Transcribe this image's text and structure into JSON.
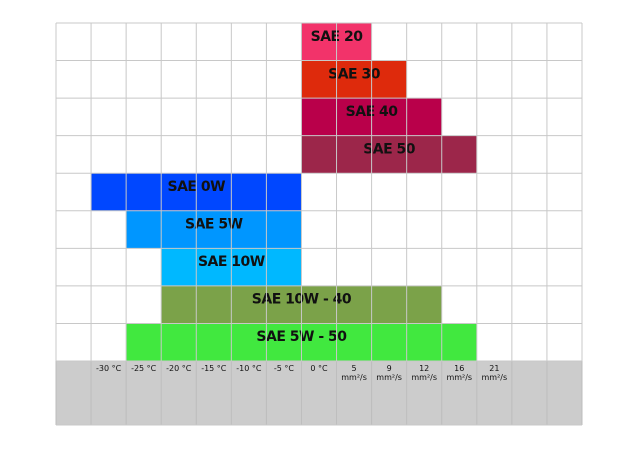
{
  "chart_data": {
    "type": "range-bar",
    "categories": [
      null,
      [
        "-30 °C"
      ],
      [
        "-25 °C"
      ],
      [
        "-20 °C"
      ],
      [
        "-15 °C"
      ],
      [
        "-10 °C"
      ],
      [
        "-5 °C"
      ],
      [
        "0 °C"
      ],
      [
        "5",
        "mm²/s"
      ],
      [
        "9",
        "mm²/s"
      ],
      [
        "12",
        "mm²/s"
      ],
      [
        "16",
        "mm²/s"
      ],
      [
        "21",
        "mm²/s"
      ],
      null,
      null
    ],
    "series": [
      {
        "name": "SAE 20",
        "color": "#f2336a",
        "start": 7,
        "end": 8
      },
      {
        "name": "SAE 30",
        "color": "#de2a0c",
        "start": 7,
        "end": 9
      },
      {
        "name": "SAE 40",
        "color": "#b9004a",
        "start": 7,
        "end": 10
      },
      {
        "name": "SAE 50",
        "color": "#9c264a",
        "start": 7,
        "end": 11
      },
      {
        "name": "SAE 0W",
        "color": "#0047ff",
        "start": 1,
        "end": 6
      },
      {
        "name": "SAE 5W",
        "color": "#0096ff",
        "start": 2,
        "end": 6
      },
      {
        "name": "SAE 10W",
        "color": "#00b8ff",
        "start": 3,
        "end": 6
      },
      {
        "name": "SAE 10W - 40",
        "color": "#7ba249",
        "start": 3,
        "end": 10
      },
      {
        "name": "SAE 5W - 50",
        "color": "#41e83f",
        "start": 2,
        "end": 11
      }
    ],
    "grid": true
  }
}
